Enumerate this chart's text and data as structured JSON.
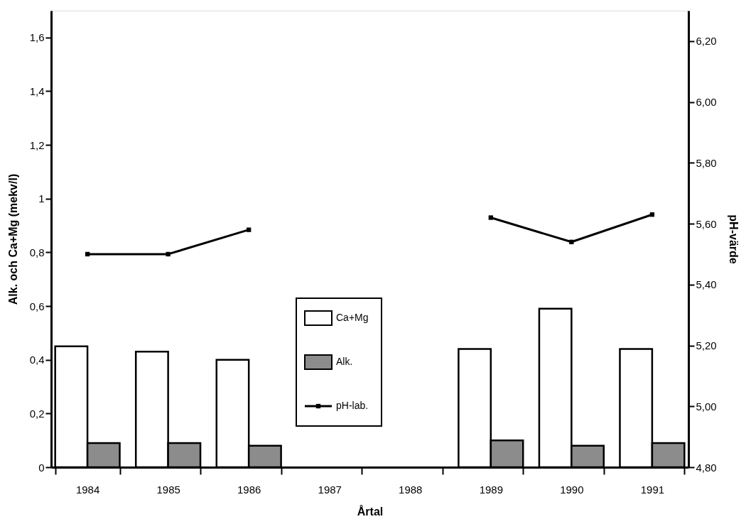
{
  "chart_data": {
    "type": "bar",
    "xlabel": "Årtal",
    "ylabel": "Alk. och Ca+Mg (mekv/l)",
    "y2label": "pH-värde",
    "categories": [
      "1984",
      "1985",
      "1986",
      "1987",
      "1988",
      "1989",
      "1990",
      "1991"
    ],
    "series": [
      {
        "name": "Ca+Mg",
        "color": "#ffffff",
        "values": [
          0.45,
          0.43,
          0.4,
          null,
          null,
          0.44,
          0.59,
          0.44
        ]
      },
      {
        "name": "Alk.",
        "color": "#8c8c8c",
        "values": [
          0.09,
          0.09,
          0.08,
          null,
          null,
          0.1,
          0.08,
          0.09
        ]
      },
      {
        "name": "pH-lab.",
        "type": "line",
        "axis": "y2",
        "color": "#000000",
        "values": [
          5.5,
          5.5,
          5.58,
          null,
          null,
          5.62,
          5.54,
          5.63
        ]
      }
    ],
    "ylim": [
      0,
      1.7
    ],
    "yticks": [
      0,
      {
        "value": 0.2,
        "label": "0,2"
      },
      {
        "value": 0.4,
        "label": "0,4"
      },
      {
        "value": 0.6,
        "label": "0,6"
      },
      {
        "value": 0.8,
        "label": "0,8"
      },
      1,
      {
        "value": 1.2,
        "label": "1,2"
      },
      {
        "value": 1.4,
        "label": "1,4"
      },
      {
        "value": 1.6,
        "label": "1,6"
      }
    ],
    "y2lim": [
      4.8,
      6.3
    ],
    "y2ticks": [
      {
        "value": 4.8,
        "label": "4,80"
      },
      {
        "value": 5.0,
        "label": "5,00"
      },
      {
        "value": 5.2,
        "label": "5,20"
      },
      {
        "value": 5.4,
        "label": "5,40"
      },
      {
        "value": 5.6,
        "label": "5,60"
      },
      {
        "value": 5.8,
        "label": "5,80"
      },
      {
        "value": 6.0,
        "label": "6,00"
      },
      {
        "value": 6.2,
        "label": "6,20"
      }
    ],
    "grid": false,
    "legend": "bottom",
    "marker": "square",
    "line_style": "solid"
  }
}
